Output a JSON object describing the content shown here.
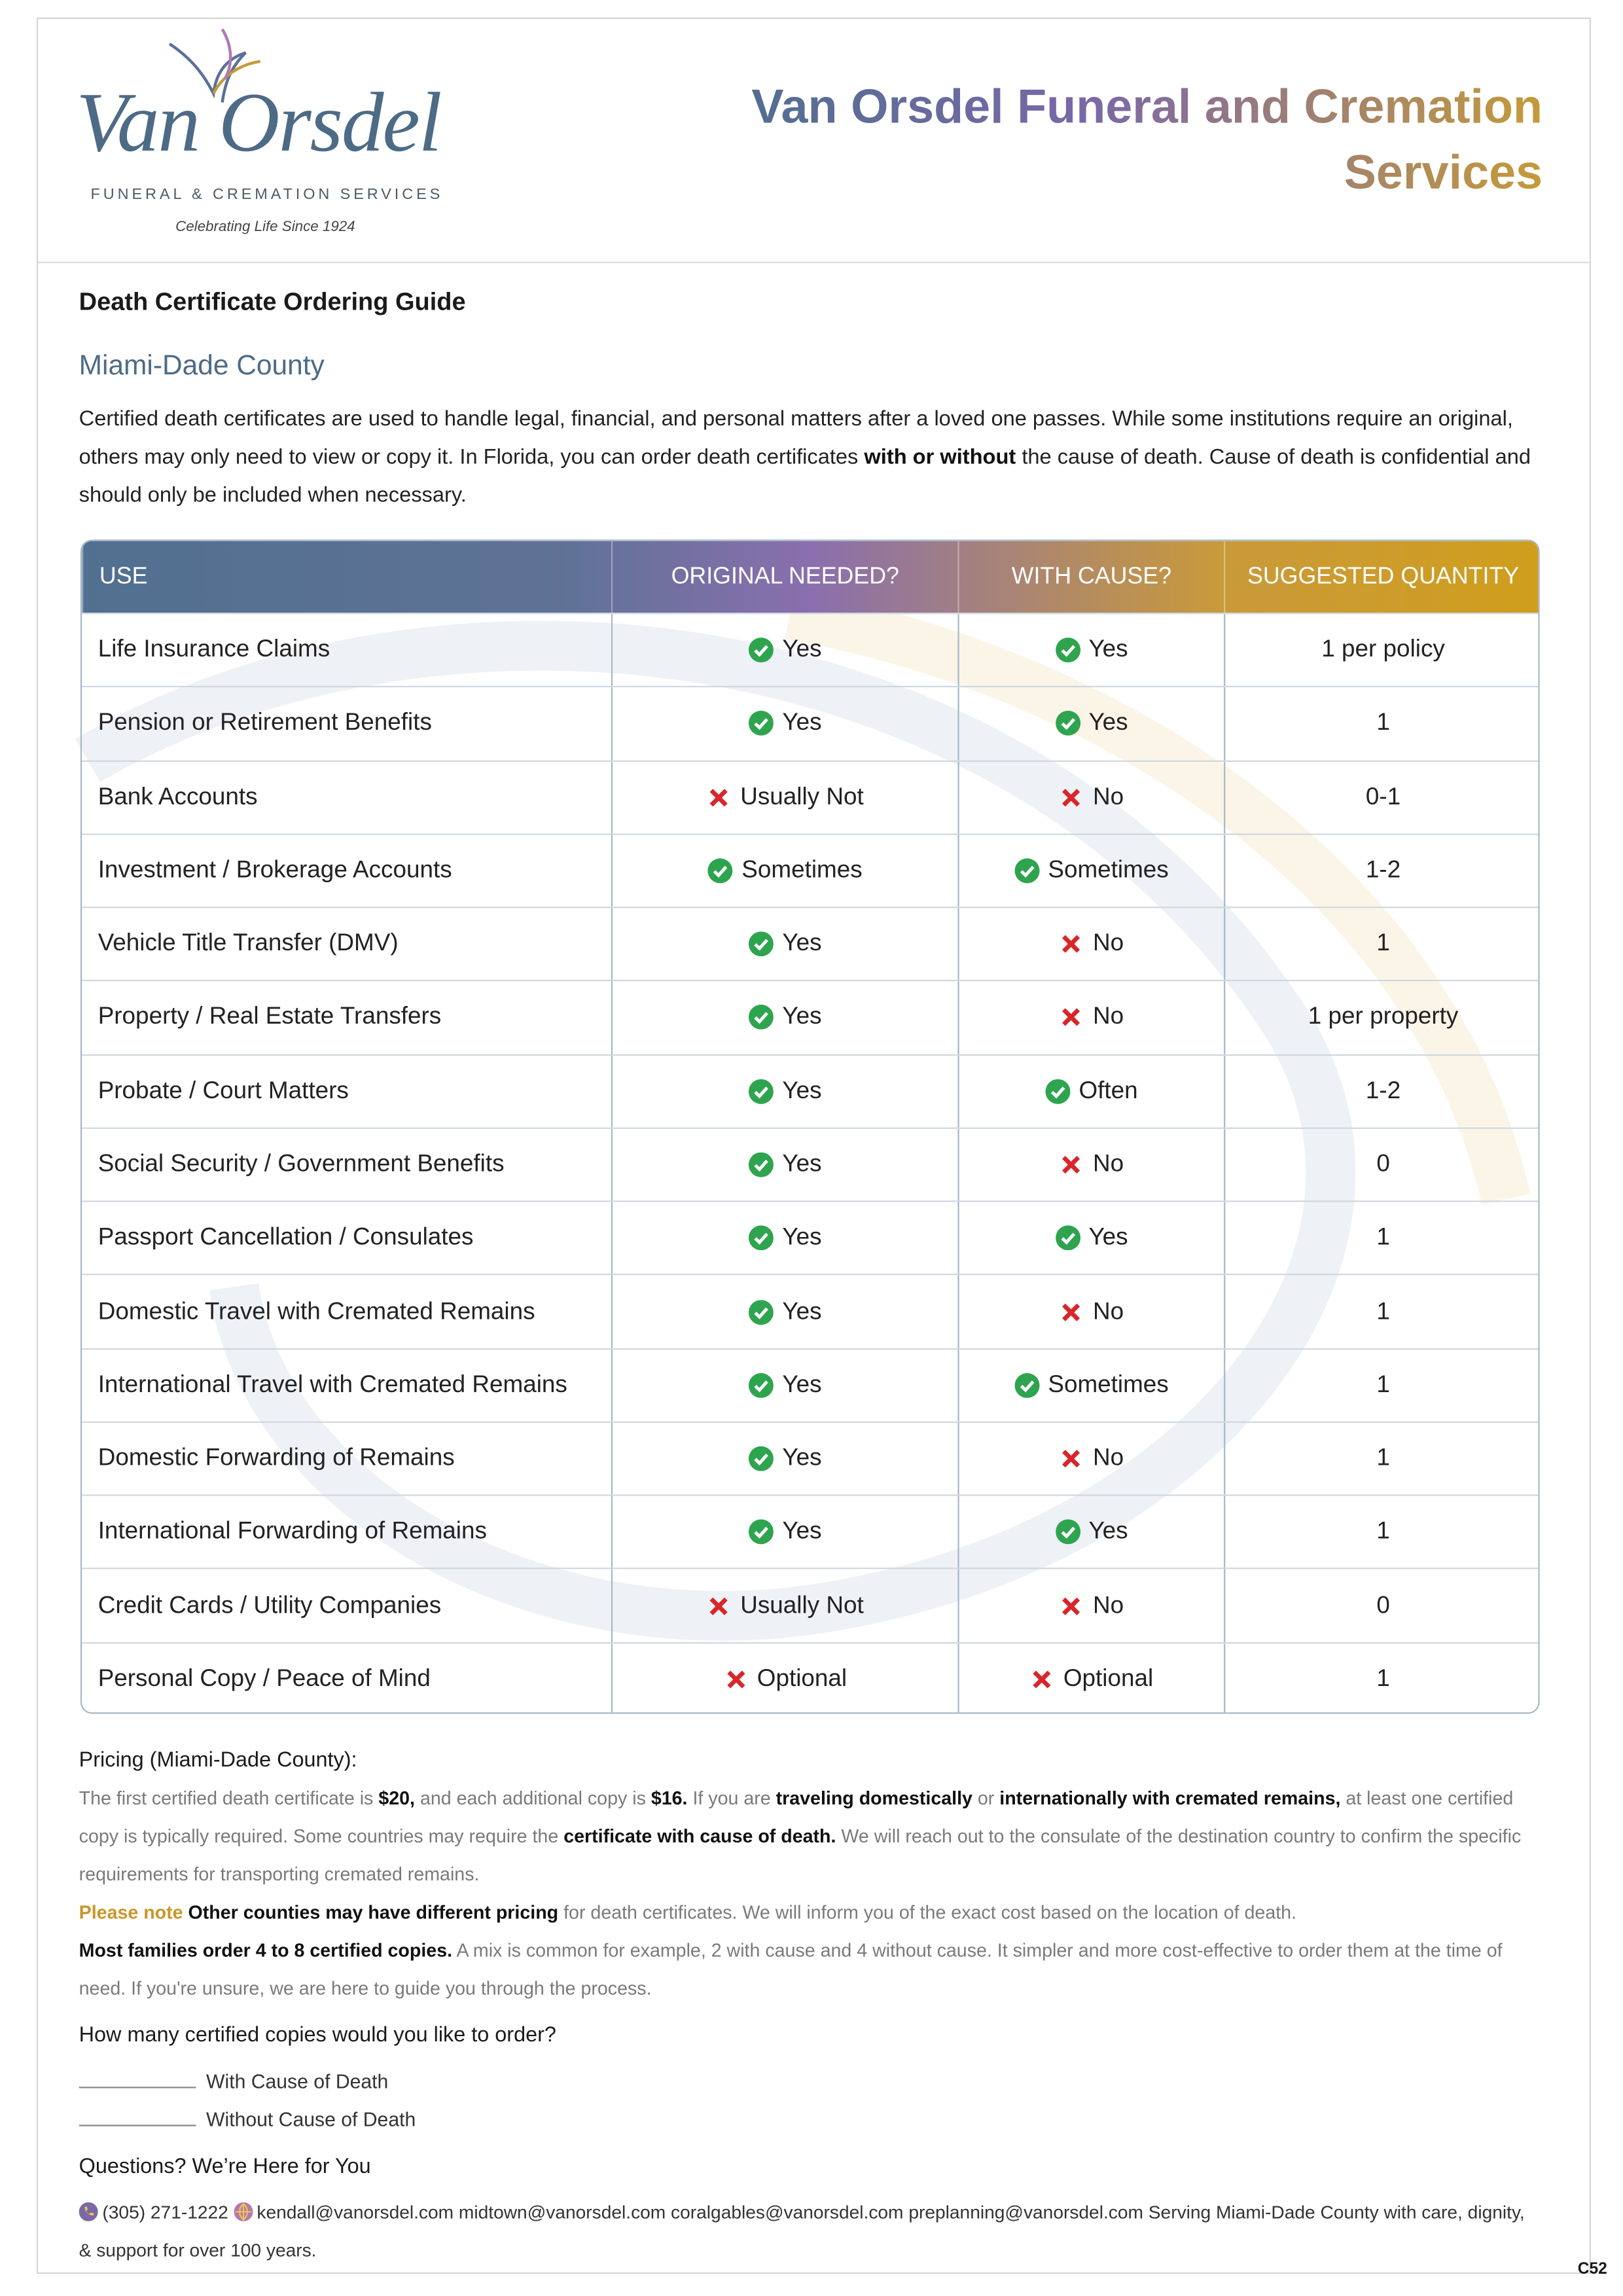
{
  "header": {
    "brand": "Van Orsdel",
    "tagline": "FUNERAL & CREMATION SERVICES",
    "motto": "Celebrating Life Since 1924",
    "title": "Van Orsdel Funeral and Cremation Services"
  },
  "guide_title": "Death Certificate Ordering Guide",
  "county": "Miami-Dade County",
  "intro": [
    {
      "text": "Certified death certificates are used to handle legal, financial, and personal matters after a loved one passes. While some institutions require an original, others may only need to view or copy it. In Florida, you can order death certificates ",
      "style": "normal"
    },
    {
      "text": "with or without",
      "style": "bold"
    },
    {
      "text": " the cause of death. Cause of death is confidential and should only be included when necessary.",
      "style": "normal"
    }
  ],
  "table": {
    "headers": [
      "USE",
      "ORIGINAL NEEDED?",
      "WITH CAUSE?",
      "SUGGESTED QUANTITY"
    ],
    "rows": [
      [
        "Life Insurance Claims",
        {
          "text": "Yes",
          "mark": "check"
        },
        {
          "text": "Yes",
          "mark": "check"
        },
        "1 per policy"
      ],
      [
        "Pension or Retirement Benefits",
        {
          "text": "Yes",
          "mark": "check"
        },
        {
          "text": "Yes",
          "mark": "check"
        },
        "1"
      ],
      [
        "Bank Accounts",
        {
          "text": "Usually Not",
          "mark": "cross"
        },
        {
          "text": "No",
          "mark": "cross"
        },
        "0-1"
      ],
      [
        "Investment / Brokerage Accounts",
        {
          "text": "Sometimes",
          "mark": "check"
        },
        {
          "text": "Sometimes",
          "mark": "check"
        },
        "1-2"
      ],
      [
        "Vehicle Title Transfer (DMV)",
        {
          "text": "Yes",
          "mark": "check"
        },
        {
          "text": "No",
          "mark": "cross"
        },
        "1"
      ],
      [
        "Property / Real Estate Transfers",
        {
          "text": "Yes",
          "mark": "check"
        },
        {
          "text": "No",
          "mark": "cross"
        },
        "1 per property"
      ],
      [
        "Probate / Court Matters",
        {
          "text": "Yes",
          "mark": "check"
        },
        {
          "text": "Often",
          "mark": "check"
        },
        "1-2"
      ],
      [
        "Social Security / Government Benefits",
        {
          "text": "Yes",
          "mark": "check"
        },
        {
          "text": "No",
          "mark": "cross"
        },
        "0"
      ],
      [
        "Passport Cancellation / Consulates",
        {
          "text": "Yes",
          "mark": "check"
        },
        {
          "text": "Yes",
          "mark": "check"
        },
        "1"
      ],
      [
        "Domestic Travel with Cremated Remains",
        {
          "text": "Yes",
          "mark": "check"
        },
        {
          "text": "No",
          "mark": "cross"
        },
        "1"
      ],
      [
        "International Travel with Cremated Remains",
        {
          "text": "Yes",
          "mark": "check"
        },
        {
          "text": "Sometimes",
          "mark": "check"
        },
        "1"
      ],
      [
        "Domestic Forwarding of Remains",
        {
          "text": "Yes",
          "mark": "check"
        },
        {
          "text": "No",
          "mark": "cross"
        },
        "1"
      ],
      [
        "International Forwarding of Remains",
        {
          "text": "Yes",
          "mark": "check"
        },
        {
          "text": "Yes",
          "mark": "check"
        },
        "1"
      ],
      [
        "Credit Cards / Utility Companies",
        {
          "text": "Usually Not",
          "mark": "cross"
        },
        {
          "text": "No",
          "mark": "cross"
        },
        "0"
      ],
      [
        "Personal Copy / Peace of Mind",
        {
          "text": "Optional",
          "mark": "cross"
        },
        {
          "text": "Optional",
          "mark": "cross"
        },
        "1"
      ]
    ]
  },
  "pricing": {
    "heading": "Pricing (Miami-Dade County):",
    "paragraphs": [
      [
        {
          "text": "The first certified death certificate is ",
          "style": "normal"
        },
        {
          "text": "$20,",
          "style": "bold"
        },
        {
          "text": " and each additional copy is ",
          "style": "normal"
        },
        {
          "text": "$16.",
          "style": "bold"
        },
        {
          "text": " If you are ",
          "style": "normal"
        },
        {
          "text": "traveling domestically",
          "style": "bold"
        },
        {
          "text": " or ",
          "style": "normal"
        },
        {
          "text": "internationally with cremated remains,",
          "style": "bold"
        },
        {
          "text": " at least one certified copy is typically required. Some countries may require the ",
          "style": "normal"
        },
        {
          "text": "certificate with cause of death.",
          "style": "bold"
        },
        {
          "text": " We will reach out to the consulate of the destination country to confirm the specific requirements for transporting cremated remains.",
          "style": "normal"
        }
      ],
      [
        {
          "text": "Please note",
          "style": "gold"
        },
        {
          "text": " Other counties may have different pricing",
          "style": "bold"
        },
        {
          "text": " for death certificates. We will inform you of the exact cost based on the location of death.",
          "style": "normal"
        }
      ],
      [
        {
          "text": "Most families order 4 to 8 certified copies.",
          "style": "bold"
        },
        {
          "text": " A mix is common  for example, 2 with cause and 4 without cause. It simpler and more cost-effective to order them at the time of need. If you're unsure, we are here to guide you through the process.",
          "style": "normal"
        }
      ]
    ]
  },
  "order": {
    "heading": "How many certified copies would you like to order?",
    "options": [
      "With Cause of Death",
      "Without Cause of Death"
    ]
  },
  "questions": {
    "heading": "Questions? We’re Here for You",
    "phone": "(305) 271-1222",
    "emails": [
      "kendall@vanorsdel.com",
      "midtown@vanorsdel.com",
      "coralgables@vanorsdel.com",
      "preplanning@vanorsdel.com"
    ],
    "closing": "Serving Miami-Dade County with care, dignity, & support for over 100 years."
  },
  "code": "C52"
}
